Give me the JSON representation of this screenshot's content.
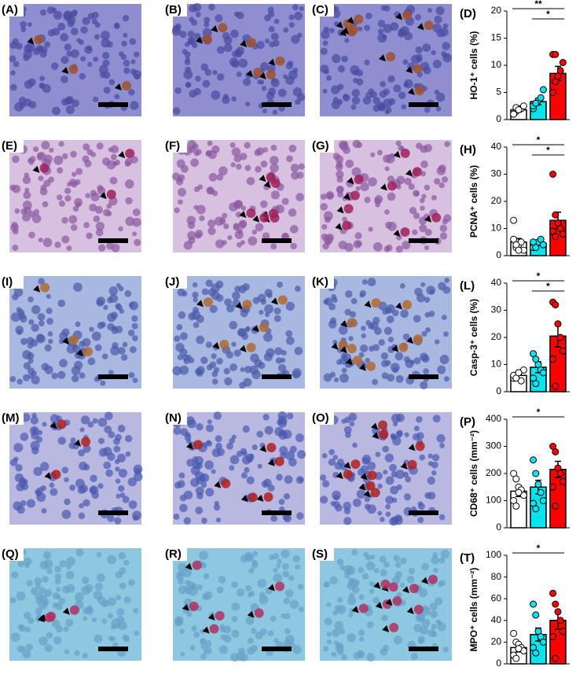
{
  "panels": [
    [
      "(A)",
      "(B)",
      "(C)"
    ],
    [
      "(E)",
      "(F)",
      "(G)"
    ],
    [
      "(I)",
      "(J)",
      "(K)"
    ],
    [
      "(M)",
      "(N)",
      "(O)"
    ],
    [
      "(Q)",
      "(R)",
      "(S)"
    ]
  ],
  "chart_data": [
    {
      "type": "bar",
      "panel": "(D)",
      "ylabel": "HO-1⁺ cells (%)",
      "categories": [
        null,
        null,
        null
      ],
      "colors": [
        "#ffffff",
        "#00e5ee",
        "#ff0000"
      ],
      "values": [
        1.8,
        3.3,
        8.5
      ],
      "errors": [
        0.4,
        0.6,
        1.3
      ],
      "points": [
        [
          1,
          1.5,
          2,
          2,
          2.5,
          1,
          2.2,
          1.8
        ],
        [
          2,
          3,
          3.5,
          4,
          5.5,
          2.5,
          3
        ],
        [
          5,
          7,
          8,
          9,
          10.5,
          12,
          12
        ]
      ],
      "ylim": [
        0,
        20
      ],
      "yticks": [
        0,
        5,
        10,
        15,
        20
      ],
      "significance": [
        {
          "label": "**",
          "groups": [
            0,
            2
          ]
        },
        {
          "label": "*",
          "groups": [
            1,
            2
          ]
        }
      ]
    },
    {
      "type": "bar",
      "panel": "(H)",
      "ylabel": "PCNA⁺ cells (%)",
      "categories": [
        null,
        null,
        null
      ],
      "colors": [
        "#ffffff",
        "#00e5ee",
        "#ff0000"
      ],
      "values": [
        5,
        4.5,
        13
      ],
      "errors": [
        1.3,
        0.6,
        3
      ],
      "points": [
        [
          13,
          3,
          4,
          5,
          2,
          6,
          4,
          2
        ],
        [
          3,
          4,
          5,
          6,
          4,
          5,
          3
        ],
        [
          30,
          15,
          12,
          10,
          8,
          9,
          7
        ]
      ],
      "ylim": [
        0,
        40
      ],
      "yticks": [
        0,
        10,
        20,
        30,
        40
      ],
      "significance": [
        {
          "label": "*",
          "groups": [
            0,
            2
          ]
        },
        {
          "label": "*",
          "groups": [
            1,
            2
          ]
        }
      ]
    },
    {
      "type": "bar",
      "panel": "(L)",
      "ylabel": "Casp-3⁺ cells (%)",
      "categories": [
        null,
        null,
        null
      ],
      "colors": [
        "#ffffff",
        "#00e5ee",
        "#ff0000"
      ],
      "values": [
        6,
        9,
        20.5
      ],
      "errors": [
        1,
        2,
        4
      ],
      "points": [
        [
          5,
          6,
          7,
          4,
          8,
          6,
          5,
          7
        ],
        [
          14,
          12,
          10,
          8,
          7,
          5,
          3
        ],
        [
          33,
          32,
          25,
          20,
          15,
          12,
          2
        ]
      ],
      "ylim": [
        0,
        40
      ],
      "yticks": [
        0,
        10,
        20,
        30,
        40
      ],
      "significance": [
        {
          "label": "*",
          "groups": [
            0,
            2
          ]
        },
        {
          "label": "*",
          "groups": [
            1,
            2
          ]
        }
      ]
    },
    {
      "type": "bar",
      "panel": "(P)",
      "ylabel": "CD68⁺ cells (mm⁻²)",
      "categories": [
        null,
        null,
        null
      ],
      "colors": [
        "#ffffff",
        "#00e5ee",
        "#ff0000"
      ],
      "values": [
        135,
        150,
        215
      ],
      "errors": [
        20,
        25,
        30
      ],
      "points": [
        [
          200,
          180,
          150,
          140,
          120,
          100,
          80,
          130
        ],
        [
          250,
          200,
          160,
          130,
          100,
          90,
          70
        ],
        [
          300,
          280,
          220,
          200,
          170,
          150,
          80
        ]
      ],
      "ylim": [
        0,
        400
      ],
      "yticks": [
        0,
        100,
        200,
        300,
        400
      ],
      "significance": [
        {
          "label": "*",
          "groups": [
            0,
            2
          ]
        }
      ]
    },
    {
      "type": "bar",
      "panel": "(T)",
      "ylabel": "MPO⁺ cells (mm⁻²)",
      "categories": [
        null,
        null,
        null
      ],
      "colors": [
        "#ffffff",
        "#00e5ee",
        "#ff0000"
      ],
      "values": [
        15,
        27,
        40
      ],
      "errors": [
        4,
        6,
        8
      ],
      "points": [
        [
          28,
          20,
          18,
          15,
          12,
          8,
          5,
          14
        ],
        [
          55,
          45,
          30,
          25,
          20,
          15,
          10
        ],
        [
          65,
          55,
          48,
          40,
          30,
          25,
          5
        ]
      ],
      "ylim": [
        0,
        100
      ],
      "yticks": [
        0,
        20,
        40,
        60,
        80,
        100
      ],
      "significance": [
        {
          "label": "*",
          "groups": [
            0,
            2
          ]
        }
      ]
    }
  ]
}
